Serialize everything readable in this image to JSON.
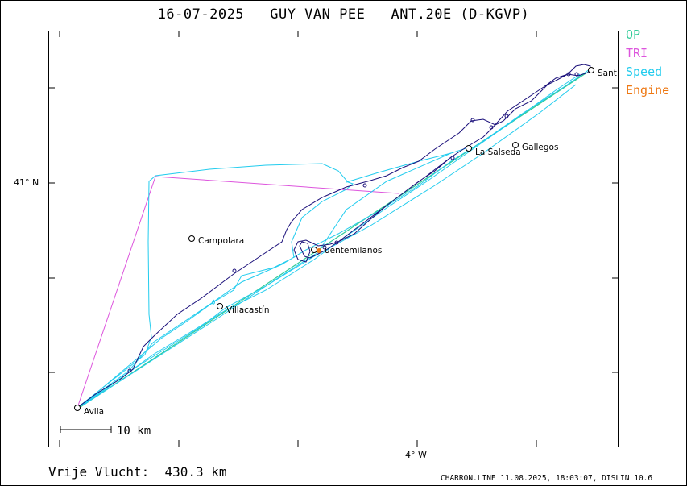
{
  "title": "16-07-2025   GUY VAN PEE   ANT.20E (D-KGVP)",
  "legend": [
    {
      "label": "OP",
      "color": "#33cc99"
    },
    {
      "label": "TRI",
      "color": "#dd55dd"
    },
    {
      "label": "Speed",
      "color": "#22ccee"
    },
    {
      "label": "Engine",
      "color": "#ee7711"
    }
  ],
  "axes": {
    "lat_label": "41° N",
    "lon_label": "4° W"
  },
  "places": [
    {
      "name": "Avila"
    },
    {
      "name": "Campolara"
    },
    {
      "name": "Villacastín"
    },
    {
      "name": "uentemilanos"
    },
    {
      "name": "La Salseda"
    },
    {
      "name": "Gallegos"
    },
    {
      "name": "Sant"
    }
  ],
  "scale": {
    "label": "10  km"
  },
  "distance": {
    "label": "Vrije Vlucht:",
    "value": "430.3 km"
  },
  "footer": "CHARRON.LINE 11.08.2025, 18:03:07, DISLIN 10.6",
  "colors": {
    "track": "#1a0f7a",
    "track_alt": "#22ccee",
    "op": "#33cc99",
    "tri": "#dd55dd",
    "engine": "#ee7711"
  }
}
